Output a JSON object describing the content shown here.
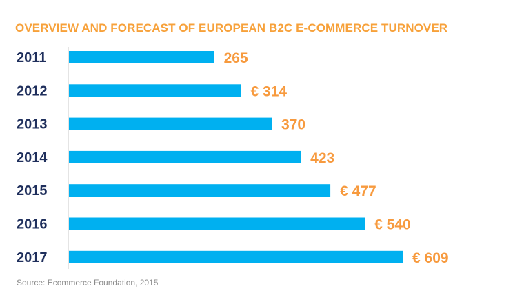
{
  "chart_data": {
    "type": "bar",
    "orientation": "horizontal",
    "title": "OVERVIEW AND FORECAST OF EUROPEAN B2C E-COMMERCE TURNOVER",
    "categories": [
      "2011",
      "2012",
      "2013",
      "2014",
      "2015",
      "2016",
      "2017"
    ],
    "values": [
      265,
      314,
      370,
      423,
      477,
      540,
      609
    ],
    "value_labels": [
      "265",
      "€ 314",
      "370",
      "423",
      "€ 477",
      "€ 540",
      "€ 609"
    ],
    "xlim": [
      0,
      609
    ],
    "grid": false,
    "colors": {
      "bar": "#00b0f0",
      "value_label": "#f79a3e",
      "title": "#f7a13a",
      "category_label": "#1f2f5c"
    },
    "source": "Source: Ecommerce Foundation, 2015"
  }
}
